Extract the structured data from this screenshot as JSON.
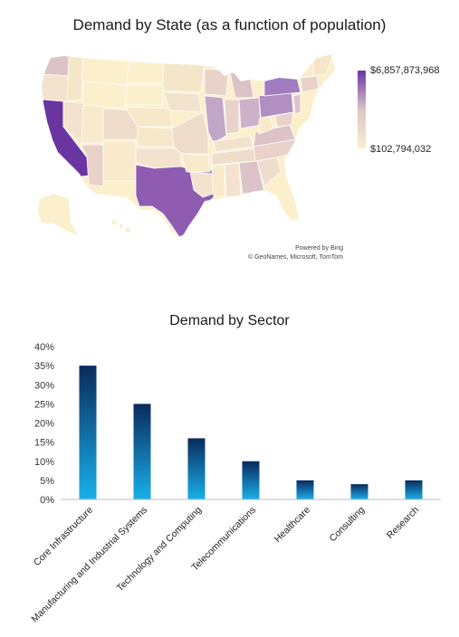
{
  "map": {
    "title": "Demand by State (as a function of population)",
    "legend_max": "$6,857,873,968",
    "legend_min": "$102,794,032",
    "color_low": "#fbefcc",
    "color_mid": "#dcc3c7",
    "color_high": "#6a35a1",
    "credit_line1": "Powered by Bing",
    "credit_line2": "© GeoNames, Microsoft, TomTom"
  },
  "chart_data": {
    "type": "bar",
    "title": "Demand by Sector",
    "categories": [
      "Core Infrastructure",
      "Manufacturing and Industrial Systems",
      "Technology and Computing",
      "Telecommunications",
      "Healthcare",
      "Consulting",
      "Research"
    ],
    "values": [
      35,
      25,
      16,
      10,
      5,
      4,
      5
    ],
    "yticks": [
      "0%",
      "5%",
      "10%",
      "15%",
      "20%",
      "25%",
      "30%",
      "35%",
      "40%"
    ],
    "ylim": [
      0,
      40
    ],
    "grid": false,
    "bar_color_top": "#0a2a5c",
    "bar_color_bottom": "#19b0ea"
  }
}
